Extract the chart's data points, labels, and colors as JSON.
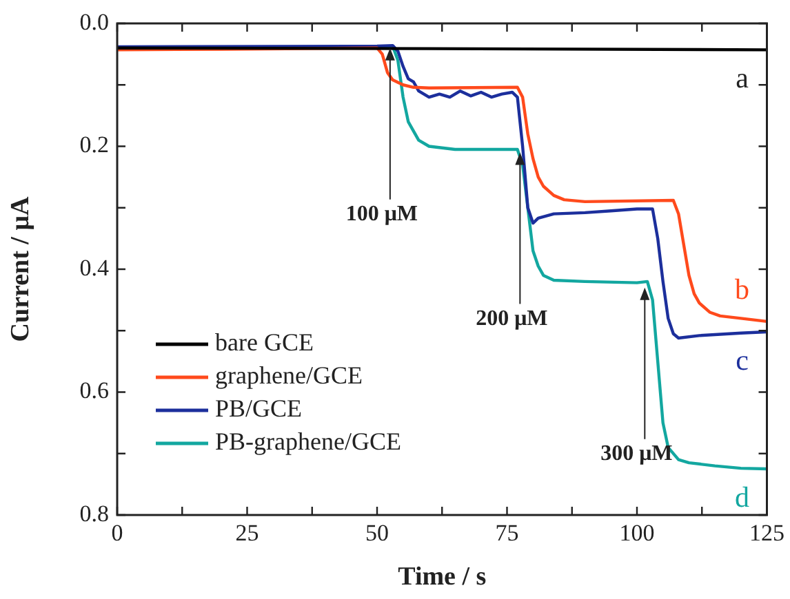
{
  "chart_data": {
    "type": "line",
    "xlabel": "Time / s",
    "ylabel": "Current / μA",
    "xlim": [
      0,
      125
    ],
    "xticks": [
      0,
      {
        "value": 12.5,
        "label": null
      },
      25,
      {
        "value": 37.5,
        "label": null
      },
      50,
      {
        "value": 62.5,
        "label": null
      },
      75,
      {
        "value": 87.5,
        "label": null
      },
      100,
      {
        "value": 112.5,
        "label": null
      },
      125
    ],
    "ylim": [
      0.8,
      0
    ],
    "yticks": [
      {
        "value": 0,
        "label": "0.0"
      },
      {
        "value": 0.1,
        "label": null
      },
      {
        "value": 0.2,
        "label": "0.2"
      },
      {
        "value": 0.3,
        "label": null
      },
      {
        "value": 0.4,
        "label": "0.4"
      },
      {
        "value": 0.5,
        "label": null
      },
      {
        "value": 0.6,
        "label": "0.6"
      },
      {
        "value": 0.7,
        "label": null
      },
      {
        "value": 0.8,
        "label": "0.8"
      }
    ],
    "grid": false,
    "legend": "bottom left",
    "marker": "none",
    "line_style": "solid",
    "series": [
      {
        "name": "bare GCE",
        "color": "#000000",
        "x": [
          0,
          60,
          125
        ],
        "values": [
          0.04,
          0.041,
          0.043
        ]
      },
      {
        "name": "graphene/GCE",
        "color": "#ff4a1c",
        "x": [
          0,
          20,
          50,
          51,
          52,
          53,
          55,
          57,
          60,
          77,
          78,
          79,
          80,
          81,
          82,
          84,
          86,
          90,
          107,
          108,
          109,
          110,
          111,
          112,
          114,
          116,
          120,
          125
        ],
        "values": [
          0.043,
          0.042,
          0.04,
          0.05,
          0.08,
          0.092,
          0.1,
          0.104,
          0.105,
          0.104,
          0.12,
          0.18,
          0.22,
          0.25,
          0.265,
          0.28,
          0.287,
          0.29,
          0.288,
          0.31,
          0.36,
          0.41,
          0.44,
          0.455,
          0.47,
          0.476,
          0.48,
          0.485
        ]
      },
      {
        "name": "PB/GCE",
        "color": "#1c2f9c",
        "x": [
          0,
          50,
          53,
          54,
          55,
          56,
          57,
          58,
          60,
          62,
          64,
          66,
          68,
          70,
          72,
          74,
          76,
          77,
          78,
          79,
          80,
          81,
          84,
          90,
          95,
          100,
          103,
          104,
          105,
          106,
          107,
          108,
          112,
          120,
          125
        ],
        "values": [
          0.038,
          0.037,
          0.036,
          0.045,
          0.07,
          0.09,
          0.095,
          0.11,
          0.12,
          0.115,
          0.12,
          0.11,
          0.118,
          0.112,
          0.12,
          0.115,
          0.112,
          0.12,
          0.2,
          0.3,
          0.325,
          0.317,
          0.31,
          0.308,
          0.305,
          0.302,
          0.302,
          0.35,
          0.42,
          0.48,
          0.505,
          0.512,
          0.508,
          0.504,
          0.502
        ]
      },
      {
        "name": "PB-graphene/GCE",
        "color": "#13a7a0",
        "x": [
          0,
          50,
          53,
          54,
          55,
          56,
          58,
          60,
          65,
          77,
          78,
          79,
          80,
          81,
          82,
          84,
          90,
          100,
          102,
          103,
          104,
          105,
          106,
          108,
          110,
          115,
          120,
          125
        ],
        "values": [
          0.04,
          0.038,
          0.037,
          0.06,
          0.12,
          0.16,
          0.19,
          0.2,
          0.205,
          0.205,
          0.23,
          0.3,
          0.37,
          0.395,
          0.41,
          0.418,
          0.42,
          0.422,
          0.42,
          0.45,
          0.55,
          0.65,
          0.69,
          0.71,
          0.715,
          0.72,
          0.724,
          0.725
        ]
      }
    ],
    "annotations": [
      "a",
      "b",
      "c",
      "d",
      {
        "text": "100 μM",
        "x": 52.5,
        "y": 0.04
      },
      {
        "text": "200 μM",
        "x": 77.5,
        "y": 0.21
      },
      {
        "text": "300 μM",
        "x": 101.5,
        "y": 0.43
      }
    ]
  }
}
